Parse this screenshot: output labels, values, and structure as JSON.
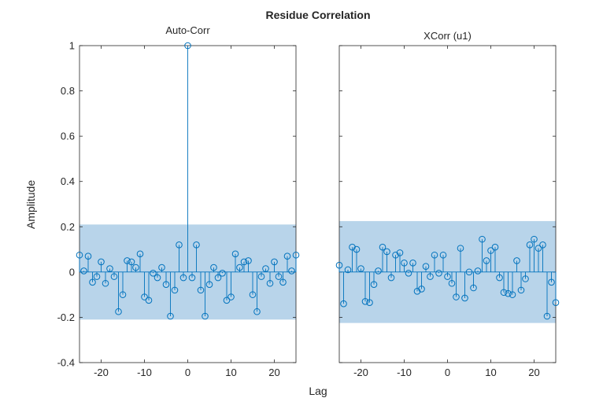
{
  "figure": {
    "title": "Residue Correlation",
    "xlabel": "Lag",
    "ylabel": "Amplitude"
  },
  "chart_data": [
    {
      "type": "stem",
      "title": "Auto-Corr",
      "xlim": [
        -25,
        25
      ],
      "ylim": [
        -0.4,
        1
      ],
      "xticks": [
        -20,
        -10,
        0,
        10,
        20
      ],
      "yticks": [
        -0.4,
        -0.2,
        0,
        0.2,
        0.4,
        0.6,
        0.8,
        1
      ],
      "ytick_labels": [
        "-0.4",
        "-0.2",
        "0",
        "0.2",
        "0.4",
        "0.6",
        "0.8",
        "1"
      ],
      "confidence_band": [
        -0.21,
        0.21
      ],
      "color": "#0072bd",
      "band_color": "#b8d4ea",
      "x": [
        -25,
        -24,
        -23,
        -22,
        -21,
        -20,
        -19,
        -18,
        -17,
        -16,
        -15,
        -14,
        -13,
        -12,
        -11,
        -10,
        -9,
        -8,
        -7,
        -6,
        -5,
        -4,
        -3,
        -2,
        -1,
        0,
        1,
        2,
        3,
        4,
        5,
        6,
        7,
        8,
        9,
        10,
        11,
        12,
        13,
        14,
        15,
        16,
        17,
        18,
        19,
        20,
        21,
        22,
        23,
        24,
        25
      ],
      "y": [
        0.075,
        0.005,
        0.07,
        -0.045,
        -0.02,
        0.045,
        -0.05,
        0.015,
        -0.02,
        -0.175,
        -0.1,
        0.05,
        0.045,
        0.02,
        0.08,
        -0.11,
        -0.125,
        -0.005,
        -0.025,
        0.02,
        -0.055,
        -0.195,
        -0.08,
        0.12,
        -0.025,
        1.0,
        -0.025,
        0.12,
        -0.08,
        -0.195,
        -0.055,
        0.02,
        -0.025,
        -0.005,
        -0.125,
        -0.11,
        0.08,
        0.02,
        0.045,
        0.05,
        -0.1,
        -0.175,
        -0.02,
        0.015,
        -0.05,
        0.045,
        -0.02,
        -0.045,
        0.07,
        0.005,
        0.075
      ]
    },
    {
      "type": "stem",
      "title": "XCorr (u1)",
      "xlim": [
        -25,
        25
      ],
      "ylim": [
        -0.4,
        1
      ],
      "xticks": [
        -20,
        -10,
        0,
        10,
        20
      ],
      "confidence_band": [
        -0.225,
        0.225
      ],
      "color": "#0072bd",
      "band_color": "#b8d4ea",
      "x": [
        -25,
        -24,
        -23,
        -22,
        -21,
        -20,
        -19,
        -18,
        -17,
        -16,
        -15,
        -14,
        -13,
        -12,
        -11,
        -10,
        -9,
        -8,
        -7,
        -6,
        -5,
        -4,
        -3,
        -2,
        -1,
        0,
        1,
        2,
        3,
        4,
        5,
        6,
        7,
        8,
        9,
        10,
        11,
        12,
        13,
        14,
        15,
        16,
        17,
        18,
        19,
        20,
        21,
        22,
        23,
        24,
        25
      ],
      "y": [
        0.03,
        -0.14,
        0.01,
        0.11,
        0.1,
        0.015,
        -0.13,
        -0.135,
        -0.055,
        0.005,
        0.11,
        0.09,
        -0.025,
        0.075,
        0.085,
        0.04,
        -0.005,
        0.04,
        -0.085,
        -0.075,
        0.025,
        -0.02,
        0.075,
        -0.005,
        0.075,
        -0.02,
        -0.05,
        -0.11,
        0.105,
        -0.115,
        0.0,
        -0.07,
        0.005,
        0.145,
        0.05,
        0.095,
        0.11,
        -0.025,
        -0.09,
        -0.095,
        -0.1,
        0.05,
        -0.08,
        -0.03,
        0.12,
        0.145,
        0.105,
        0.12,
        -0.195,
        -0.045,
        -0.135
      ]
    }
  ]
}
